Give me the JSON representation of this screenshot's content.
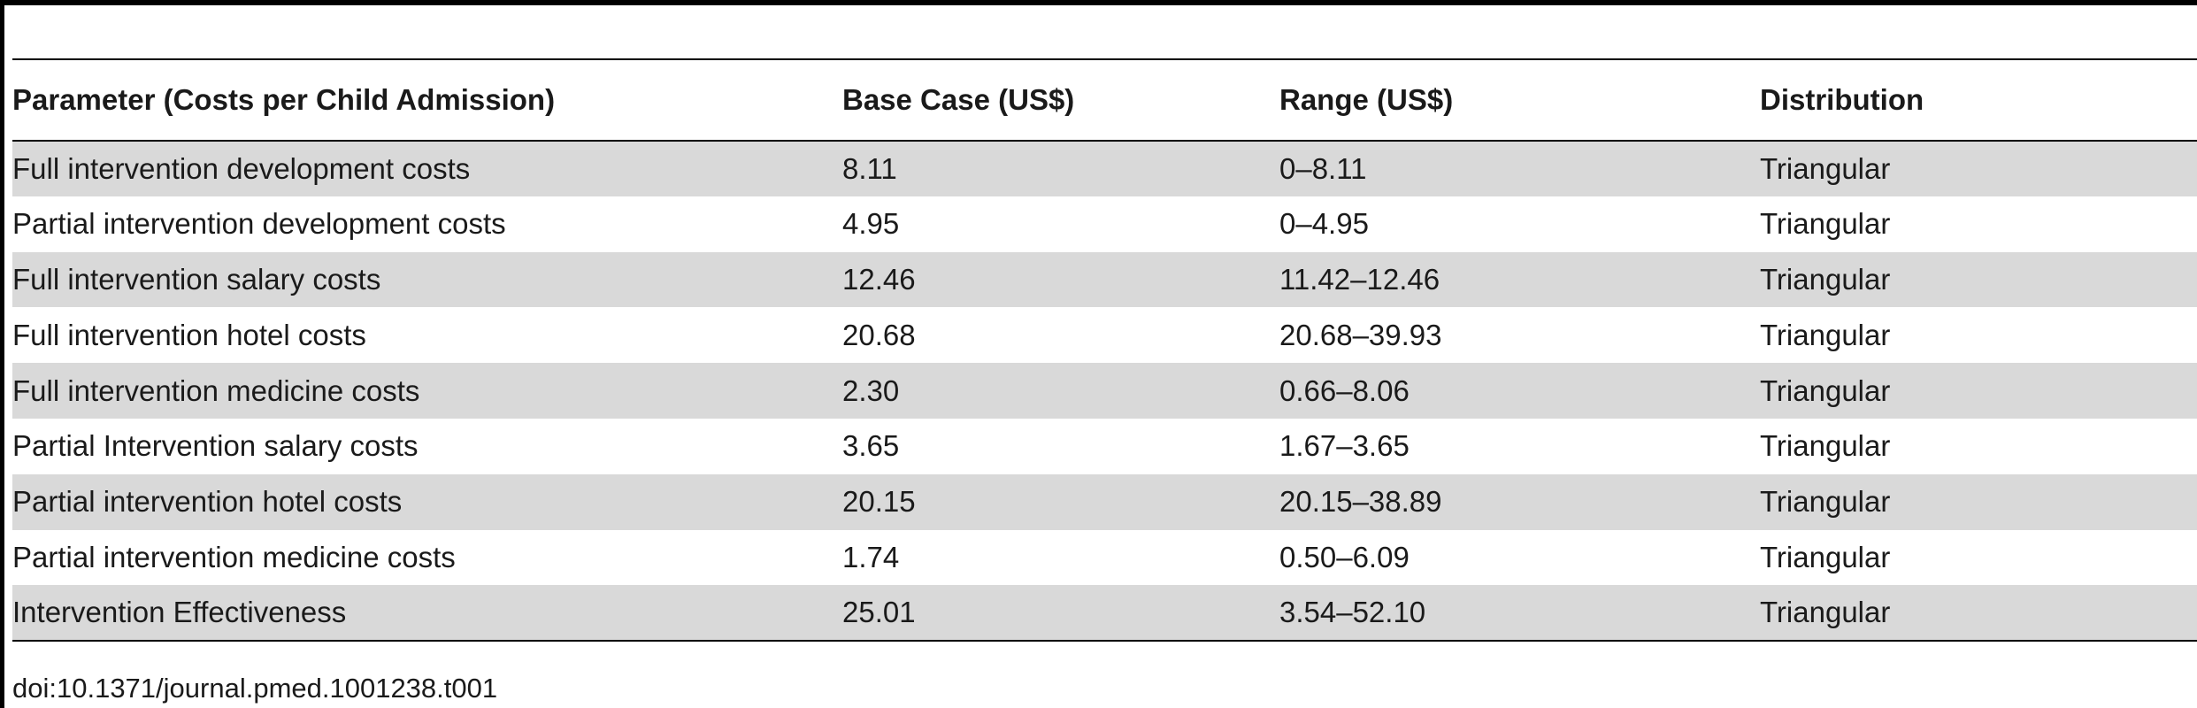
{
  "table": {
    "headers": [
      "Parameter (Costs per Child Admission)",
      "Base Case (US$)",
      "Range (US$)",
      "Distribution"
    ],
    "rows": [
      {
        "parameter": "Full intervention development costs",
        "base_case": "8.11",
        "range": "0–8.11",
        "distribution": "Triangular"
      },
      {
        "parameter": "Partial intervention development costs",
        "base_case": "4.95",
        "range": "0–4.95",
        "distribution": "Triangular"
      },
      {
        "parameter": "Full intervention salary costs",
        "base_case": "12.46",
        "range": "11.42–12.46",
        "distribution": "Triangular"
      },
      {
        "parameter": "Full intervention hotel costs",
        "base_case": "20.68",
        "range": "20.68–39.93",
        "distribution": "Triangular"
      },
      {
        "parameter": "Full intervention medicine costs",
        "base_case": "2.30",
        "range": "0.66–8.06",
        "distribution": "Triangular"
      },
      {
        "parameter": "Partial Intervention salary costs",
        "base_case": "3.65",
        "range": "1.67–3.65",
        "distribution": "Triangular"
      },
      {
        "parameter": "Partial intervention hotel costs",
        "base_case": "20.15",
        "range": "20.15–38.89",
        "distribution": "Triangular"
      },
      {
        "parameter": "Partial intervention medicine costs",
        "base_case": "1.74",
        "range": "0.50–6.09",
        "distribution": "Triangular"
      },
      {
        "parameter": "Intervention Effectiveness",
        "base_case": "25.01",
        "range": "3.54–52.10",
        "distribution": "Triangular"
      }
    ]
  },
  "footer": {
    "doi": "doi:10.1371/journal.pmed.1001238.t001"
  },
  "colors": {
    "shaded_row": "#d9d9d9",
    "rule": "#000000"
  }
}
